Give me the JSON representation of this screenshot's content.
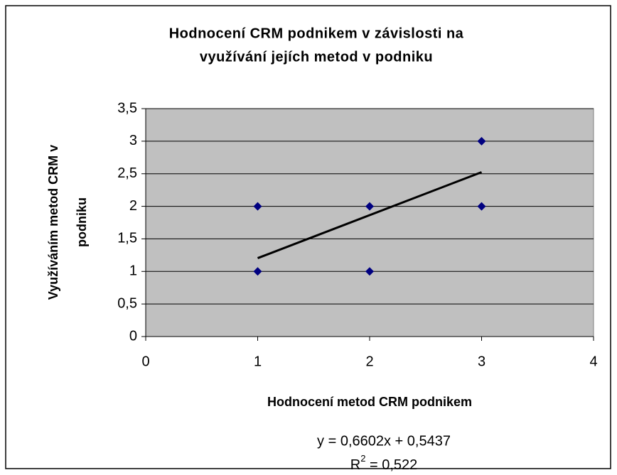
{
  "chart_data": {
    "type": "scatter",
    "title": [
      "Hodnocení CRM podnikem v závislosti na",
      "využívání jejích metod v podniku"
    ],
    "x_label": "Hodnocení metod CRM podnikem",
    "y_label": [
      "Využíváním metod CRM v",
      "podniku"
    ],
    "series": [
      {
        "color": "#000080",
        "x": [
          1,
          1,
          2,
          2,
          3,
          3
        ],
        "values": [
          1,
          2,
          1,
          2,
          2,
          3
        ]
      }
    ],
    "xlim": [
      0,
      4
    ],
    "xticks": [
      0,
      1,
      2,
      3,
      4
    ],
    "ylim": [
      0,
      3.5
    ],
    "yticks": [
      0,
      {
        "value": 0.5,
        "label": "0,5"
      },
      1,
      {
        "value": 1.5,
        "label": "1,5"
      },
      2,
      {
        "value": 2.5,
        "label": "2,5"
      },
      3,
      {
        "value": 3.5,
        "label": "3,5"
      }
    ],
    "grid": true,
    "plot_background": "#c0c0c0",
    "trendline": {
      "slope": 0.6602,
      "intercept": 0.5437,
      "color": "#000000",
      "equation": "y = 0,6602x + 0,5437",
      "r_squared": {
        "base": "R",
        "sup": "2",
        "rest": " = 0,522"
      }
    }
  }
}
